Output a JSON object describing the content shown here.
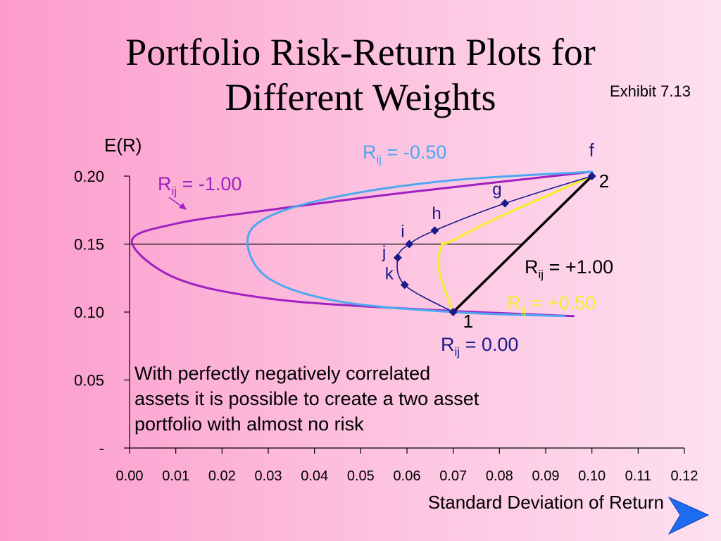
{
  "slide": {
    "title_line1": "Portfolio Risk-Return Plots for",
    "title_line2": "Different Weights",
    "exhibit": "Exhibit 7.13",
    "callout_line1": "With perfectly negatively correlated",
    "callout_line2": "assets it is possible to create a two asset",
    "callout_line3": "portfolio with almost no risk",
    "next_icon": "next-slide-arrow-icon"
  },
  "chart_data": {
    "type": "line",
    "title": "",
    "xlabel": "Standard Deviation of Return",
    "ylabel": "E(R)",
    "xlim": [
      0,
      0.12
    ],
    "ylim": [
      0,
      0.2
    ],
    "x_ticks": [
      "0.00",
      "0.01",
      "0.02",
      "0.03",
      "0.04",
      "0.05",
      "0.06",
      "0.07",
      "0.08",
      "0.09",
      "0.10",
      "0.11",
      "0.12"
    ],
    "y_ticks": [
      "-",
      "0.05",
      "0.10",
      "0.15",
      "0.20"
    ],
    "reference_line_y": 0.15,
    "series": [
      {
        "name": "-1.00",
        "label_prefix": "R",
        "label_sub": "ij",
        "label_sep": " = ",
        "color": "#a020c0",
        "points": [
          [
            0.096,
            0.097
          ],
          [
            0.06,
            0.1025
          ],
          [
            0.03,
            0.11
          ],
          [
            0.01,
            0.125
          ],
          [
            0.0005,
            0.152
          ],
          [
            0.01,
            0.165
          ],
          [
            0.03,
            0.175
          ],
          [
            0.06,
            0.188
          ],
          [
            0.1,
            0.2032
          ]
        ]
      },
      {
        "name": "-0.50",
        "label_prefix": "R",
        "label_sub": "ij",
        "label_sep": " = ",
        "color": "#4ca8f0",
        "points": [
          [
            0.094,
            0.097
          ],
          [
            0.07,
            0.1
          ],
          [
            0.045,
            0.108
          ],
          [
            0.03,
            0.125
          ],
          [
            0.0255,
            0.152
          ],
          [
            0.03,
            0.17
          ],
          [
            0.045,
            0.185
          ],
          [
            0.07,
            0.197
          ],
          [
            0.1,
            0.2032
          ]
        ]
      },
      {
        "name": "+0.50",
        "label_prefix": "R",
        "label_sub": "ij",
        "label_sep": " = ",
        "color": "#f0f030",
        "points": [
          [
            0.07,
            0.1
          ],
          [
            0.067,
            0.13
          ],
          [
            0.0675,
            0.149
          ],
          [
            0.0695,
            0.152
          ],
          [
            0.08,
            0.17
          ],
          [
            0.1,
            0.2
          ]
        ]
      },
      {
        "name": "+1.00",
        "label_prefix": "R",
        "label_sub": "ij",
        "label_sep": " = ",
        "color": "#000000",
        "points": [
          [
            0.07,
            0.1
          ],
          [
            0.1,
            0.2
          ]
        ]
      },
      {
        "name": "0.00",
        "label_prefix": "R",
        "label_sub": "ij",
        "label_sep": " = ",
        "color": "#1a1a8c",
        "points": [
          [
            0.07,
            0.1
          ],
          [
            0.0595,
            0.12
          ],
          [
            0.058,
            0.14
          ],
          [
            0.0605,
            0.15
          ],
          [
            0.066,
            0.16
          ],
          [
            0.0812,
            0.18
          ],
          [
            0.1,
            0.2
          ]
        ]
      }
    ],
    "portfolio_points": [
      {
        "label": "1",
        "x": 0.07,
        "y": 0.1
      },
      {
        "label": "k",
        "x": 0.0595,
        "y": 0.12
      },
      {
        "label": "j",
        "x": 0.058,
        "y": 0.14
      },
      {
        "label": "i",
        "x": 0.0605,
        "y": 0.15
      },
      {
        "label": "h",
        "x": 0.066,
        "y": 0.16
      },
      {
        "label": "g",
        "x": 0.0812,
        "y": 0.18
      },
      {
        "label": "f",
        "x": 0.1,
        "y": 0.2
      },
      {
        "label": "2",
        "x": 0.1,
        "y": 0.2
      }
    ]
  }
}
